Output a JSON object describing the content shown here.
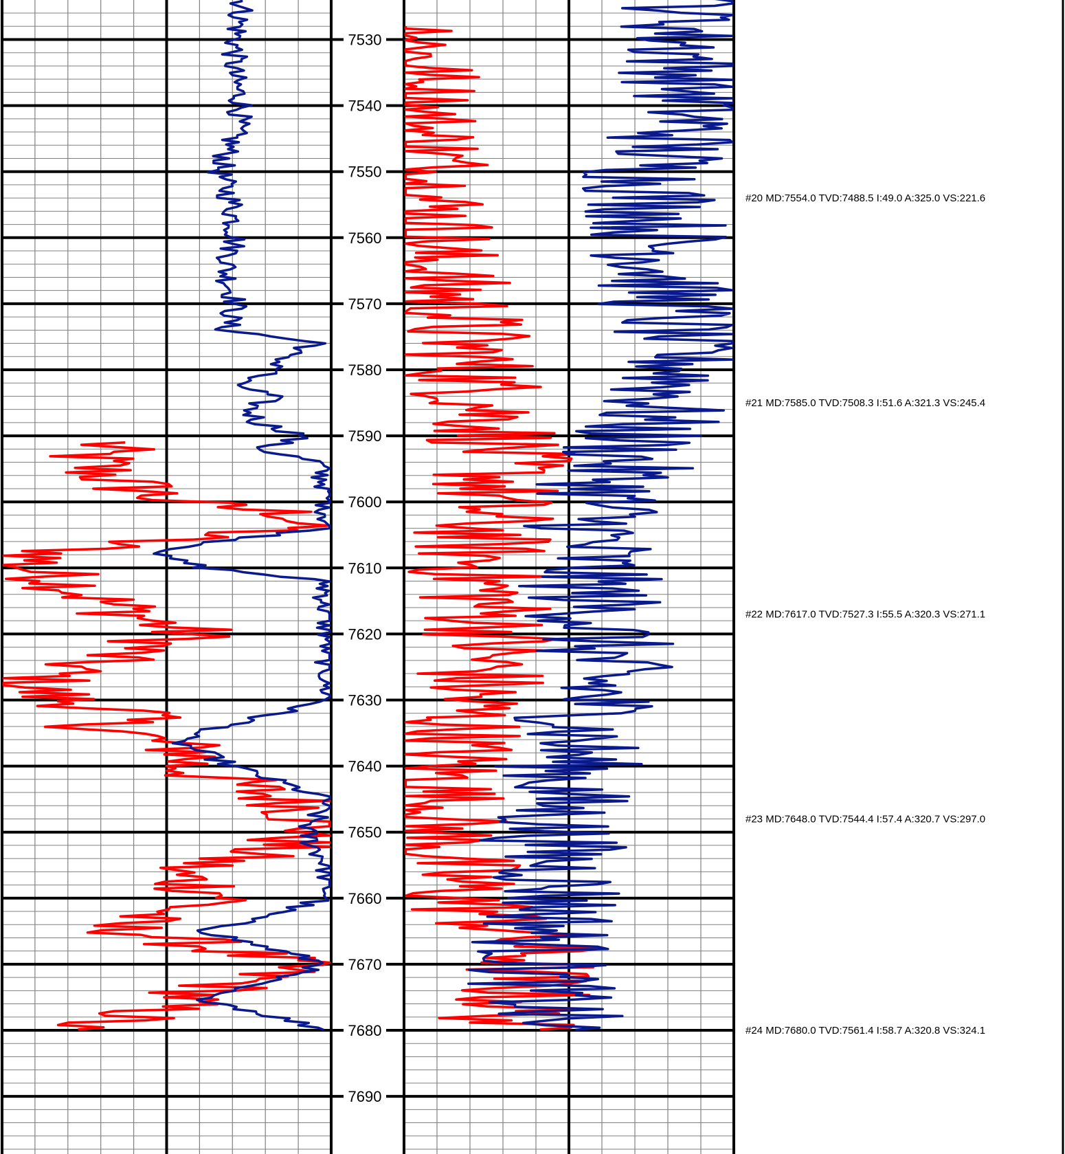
{
  "chart_data": {
    "type": "line",
    "title": "",
    "y_axis": {
      "label": "",
      "range": [
        7520,
        7698
      ],
      "major_step": 10,
      "minor_step": 2
    },
    "depth_ticks": [
      7530,
      7540,
      7550,
      7560,
      7570,
      7580,
      7590,
      7600,
      7610,
      7620,
      7630,
      7640,
      7650,
      7660,
      7670,
      7680,
      7690
    ],
    "depth_tick_labels": [
      "7530",
      "7540",
      "7550",
      "7560",
      "7570",
      "7580",
      "7590",
      "7600",
      "7610",
      "7620",
      "7630",
      "7640",
      "7650",
      "7660",
      "7670",
      "7680",
      "7690"
    ],
    "tracks": [
      {
        "name": "track-1",
        "series": [
          {
            "color": "#0a1a8c",
            "x_fraction_by_depth": [
              [
                7520,
                0.72
              ],
              [
                7525,
                0.73
              ],
              [
                7530,
                0.71
              ],
              [
                7535,
                0.7
              ],
              [
                7540,
                0.73
              ],
              [
                7545,
                0.7
              ],
              [
                7550,
                0.66
              ],
              [
                7555,
                0.7
              ],
              [
                7560,
                0.71
              ],
              [
                7565,
                0.68
              ],
              [
                7570,
                0.71
              ],
              [
                7574,
                0.68
              ],
              [
                7576,
                0.97
              ],
              [
                7578,
                0.84
              ],
              [
                7580,
                0.85
              ],
              [
                7582,
                0.7
              ],
              [
                7584,
                0.82
              ],
              [
                7586,
                0.75
              ],
              [
                7588,
                0.78
              ],
              [
                7590,
                0.92
              ],
              [
                7592,
                0.78
              ],
              [
                7594,
                0.96
              ],
              [
                7596,
                0.97
              ],
              [
                7598,
                0.99
              ],
              [
                7600,
                0.99
              ],
              [
                7604,
                0.99
              ],
              [
                7606,
                0.66
              ],
              [
                7608,
                0.46
              ],
              [
                7610,
                0.62
              ],
              [
                7612,
                0.98
              ],
              [
                7620,
                0.99
              ],
              [
                7630,
                0.99
              ],
              [
                7636,
                0.52
              ],
              [
                7640,
                0.7
              ],
              [
                7645,
                0.99
              ],
              [
                7650,
                0.92
              ],
              [
                7655,
                0.99
              ],
              [
                7660,
                0.99
              ],
              [
                7665,
                0.62
              ],
              [
                7670,
                0.99
              ],
              [
                7675,
                0.6
              ],
              [
                7680,
                0.99
              ]
            ]
          },
          {
            "color": "#ff0000",
            "start_depth": 7591,
            "x_fraction_by_depth": [
              [
                7591,
                0.32
              ],
              [
                7593,
                0.26
              ],
              [
                7595,
                0.28
              ],
              [
                7597,
                0.36
              ],
              [
                7600,
                0.52
              ],
              [
                7602,
                0.93
              ],
              [
                7604,
                0.88
              ],
              [
                7606,
                0.4
              ],
              [
                7608,
                0.12
              ],
              [
                7610,
                0.08
              ],
              [
                7612,
                0.2
              ],
              [
                7615,
                0.3
              ],
              [
                7618,
                0.45
              ],
              [
                7620,
                0.58
              ],
              [
                7622,
                0.42
              ],
              [
                7624,
                0.28
              ],
              [
                7626,
                0.15
              ],
              [
                7628,
                0.08
              ],
              [
                7630,
                0.18
              ],
              [
                7632,
                0.4
              ],
              [
                7634,
                0.3
              ],
              [
                7636,
                0.45
              ],
              [
                7638,
                0.6
              ],
              [
                7640,
                0.55
              ],
              [
                7643,
                0.72
              ],
              [
                7646,
                0.92
              ],
              [
                7650,
                0.96
              ],
              [
                7653,
                0.78
              ],
              [
                7656,
                0.5
              ],
              [
                7660,
                0.7
              ],
              [
                7664,
                0.3
              ],
              [
                7667,
                0.6
              ],
              [
                7670,
                0.88
              ],
              [
                7673,
                0.7
              ],
              [
                7676,
                0.5
              ],
              [
                7678,
                0.4
              ],
              [
                7680,
                0.12
              ]
            ]
          }
        ]
      },
      {
        "name": "track-2",
        "series": [
          {
            "color": "#0a1a8c",
            "x_fraction_by_depth": [
              [
                7520,
                0.92
              ],
              [
                7530,
                0.85
              ],
              [
                7540,
                0.9
              ],
              [
                7550,
                0.75
              ],
              [
                7560,
                0.78
              ],
              [
                7570,
                0.8
              ],
              [
                7580,
                0.86
              ],
              [
                7590,
                0.7
              ],
              [
                7600,
                0.6
              ],
              [
                7610,
                0.55
              ],
              [
                7620,
                0.6
              ],
              [
                7630,
                0.58
              ],
              [
                7640,
                0.5
              ],
              [
                7650,
                0.45
              ],
              [
                7660,
                0.48
              ],
              [
                7670,
                0.4
              ],
              [
                7680,
                0.45
              ]
            ]
          },
          {
            "color": "#ff0000",
            "x_fraction_by_depth": [
              [
                7528,
                0.05
              ],
              [
                7540,
                0.02
              ],
              [
                7548,
                0.08
              ],
              [
                7565,
                0.08
              ],
              [
                7570,
                0.15
              ],
              [
                7580,
                0.2
              ],
              [
                7588,
                0.28
              ],
              [
                7595,
                0.3
              ],
              [
                7600,
                0.25
              ],
              [
                7610,
                0.22
              ],
              [
                7620,
                0.28
              ],
              [
                7630,
                0.2
              ],
              [
                7640,
                0.12
              ],
              [
                7650,
                0.1
              ],
              [
                7660,
                0.18
              ],
              [
                7668,
                0.4
              ],
              [
                7675,
                0.35
              ],
              [
                7680,
                0.3
              ]
            ]
          }
        ]
      }
    ],
    "colors": {
      "gamma": "#0a1a8c",
      "resistivity": "#ff0000",
      "grid_major": "#000000",
      "grid_minor": "#808080"
    },
    "grid": true
  },
  "surveys": [
    {
      "depth": 7554.0,
      "text": "#20 MD:7554.0 TVD:7488.5 I:49.0 A:325.0 VS:221.6"
    },
    {
      "depth": 7585.0,
      "text": "#21 MD:7585.0 TVD:7508.3 I:51.6 A:321.3 VS:245.4"
    },
    {
      "depth": 7617.0,
      "text": "#22 MD:7617.0 TVD:7527.3 I:55.5 A:320.3 VS:271.1"
    },
    {
      "depth": 7648.0,
      "text": "#23 MD:7648.0 TVD:7544.4 I:57.4 A:320.7 VS:297.0"
    },
    {
      "depth": 7680.0,
      "text": "#24 MD:7680.0 TVD:7561.4 I:58.7 A:320.8 VS:324.1"
    }
  ]
}
